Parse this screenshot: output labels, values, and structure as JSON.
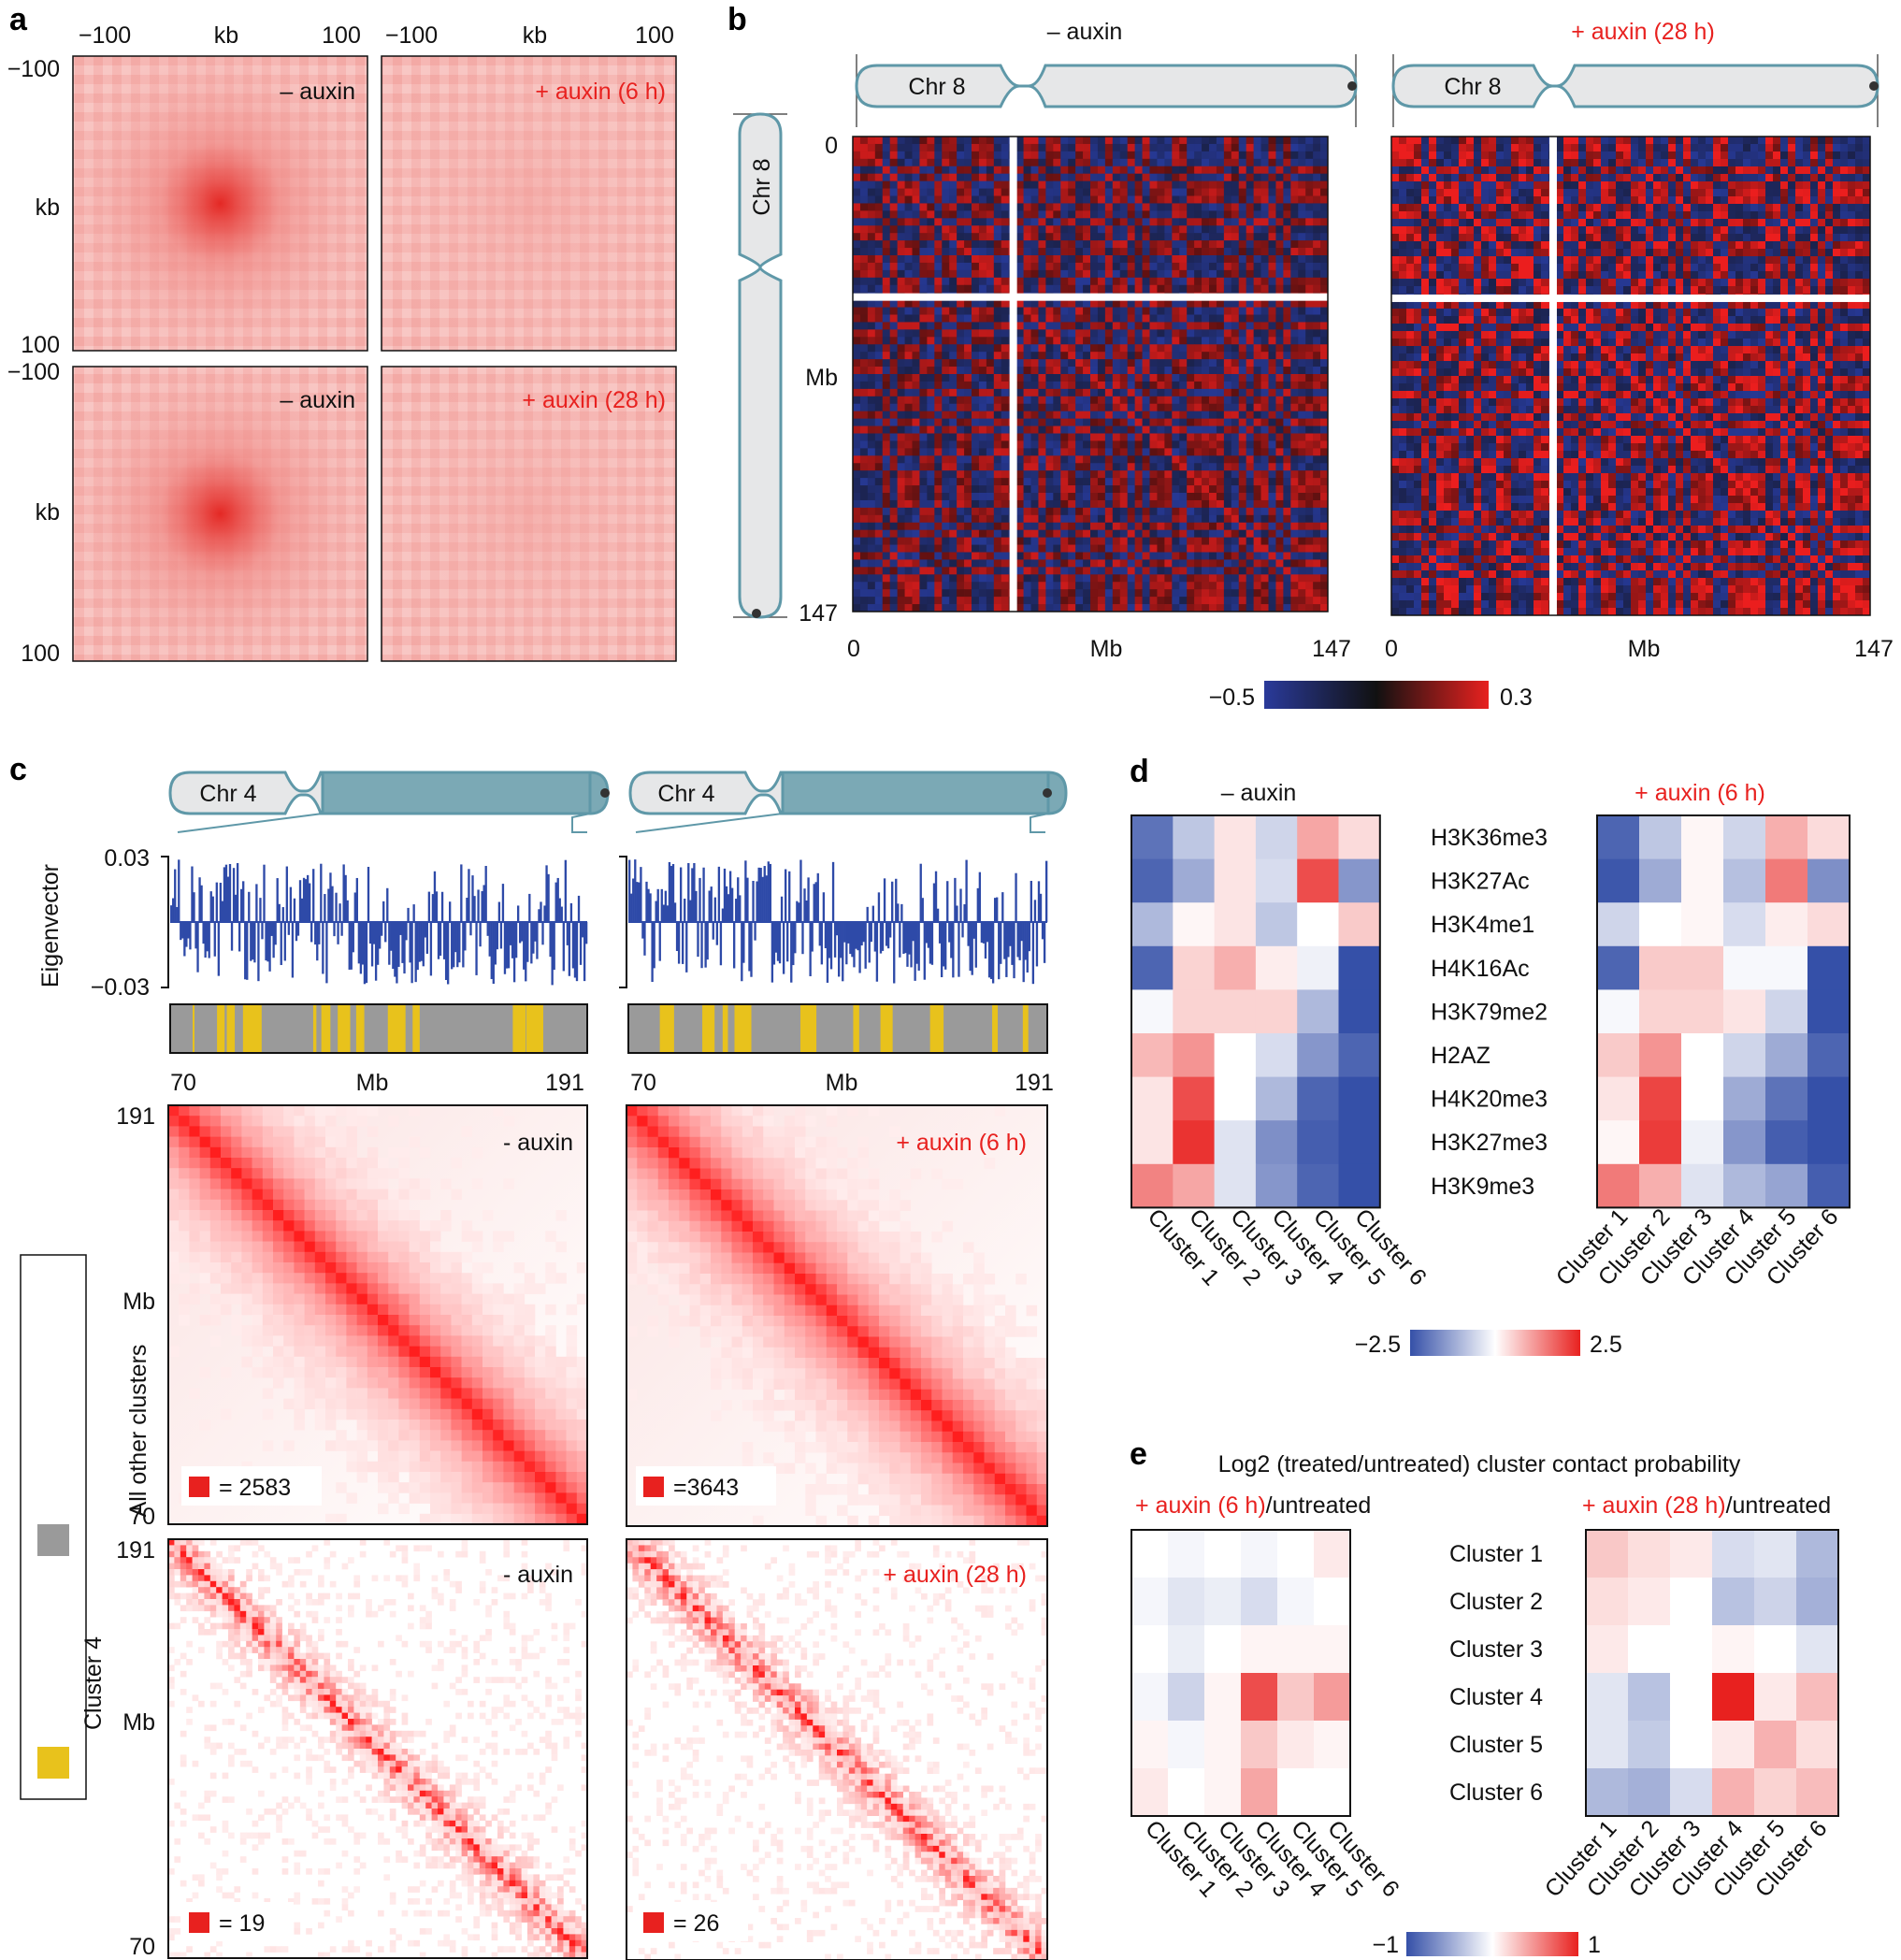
{
  "panels": {
    "a": {
      "label": "a",
      "x_ticks": [
        "−100",
        "kb",
        "100"
      ],
      "y_ticks_top": [
        "−100",
        "kb",
        "100"
      ],
      "y_ticks_bottom": [
        "−100",
        "kb",
        "100"
      ],
      "conditions": [
        "– auxin",
        "+ auxin (6 h)",
        "– auxin",
        "+ auxin (28 h)"
      ]
    },
    "b": {
      "label": "b",
      "titles": [
        "– auxin",
        "+ auxin (28 h)"
      ],
      "chromosome": "Chr 8",
      "y_ticks": [
        "0",
        "Mb",
        "147"
      ],
      "x_ticks": [
        "0",
        "Mb",
        "147"
      ],
      "colorbar": {
        "min": "−0.5",
        "max": "0.3",
        "colors": [
          "#2a3a9a",
          "#111111",
          "#e8211f"
        ]
      }
    },
    "c": {
      "label": "c",
      "chromosome": "Chr 4",
      "eigen_ylabel": "Eigenvector",
      "eigen_ticks": [
        "0.03",
        "−0.03"
      ],
      "x_ticks": [
        "70",
        "Mb",
        "191"
      ],
      "y_ticks": [
        "191",
        "Mb",
        "70"
      ],
      "maps": [
        {
          "condition": "- auxin",
          "scale": "= 2583"
        },
        {
          "condition": "+ auxin (6 h)",
          "scale": "=3643"
        },
        {
          "condition": "- auxin",
          "scale": "= 19"
        },
        {
          "condition": "+ auxin (28 h)",
          "scale": "= 26"
        }
      ],
      "legend": {
        "gray": "All other clusters",
        "yellow": "Cluster 4",
        "gray_color": "#9a9a9a",
        "yellow_color": "#e8c21c"
      }
    },
    "d": {
      "label": "d",
      "titles": [
        "– auxin",
        "+ auxin (6 h)"
      ],
      "rows": [
        "H3K36me3",
        "H3K27Ac",
        "H3K4me1",
        "H4K16Ac",
        "H3K79me2",
        "H2AZ",
        "H4K20me3",
        "H3K27me3",
        "H3K9me3"
      ],
      "clusters": [
        "Cluster 1",
        "Cluster 2",
        "Cluster 3",
        "Cluster 4",
        "Cluster 5",
        "Cluster 6"
      ],
      "colorbar": {
        "min": "−2.5",
        "max": "2.5"
      },
      "values_untreated": [
        [
          -2.0,
          -0.8,
          0.3,
          -0.6,
          1.0,
          0.4
        ],
        [
          -2.2,
          -1.2,
          0.3,
          -0.5,
          2.0,
          -1.5
        ],
        [
          -1.0,
          0.1,
          0.3,
          -0.8,
          0.0,
          0.6
        ],
        [
          -2.2,
          0.5,
          0.9,
          0.2,
          -0.2,
          -2.5
        ],
        [
          -0.1,
          0.5,
          0.5,
          0.5,
          -1.0,
          -2.5
        ],
        [
          0.8,
          1.2,
          0.0,
          -0.5,
          -1.5,
          -2.2
        ],
        [
          0.3,
          2.0,
          0.0,
          -1.0,
          -2.2,
          -2.5
        ],
        [
          0.3,
          2.3,
          -0.4,
          -1.6,
          -2.3,
          -2.5
        ],
        [
          1.4,
          1.0,
          -0.4,
          -1.5,
          -2.2,
          -2.5
        ]
      ],
      "values_treated": [
        [
          -2.2,
          -0.8,
          0.1,
          -0.6,
          0.9,
          0.4
        ],
        [
          -2.4,
          -1.2,
          0.1,
          -0.9,
          1.5,
          -1.6
        ],
        [
          -0.6,
          0.0,
          0.1,
          -0.5,
          0.2,
          0.4
        ],
        [
          -2.2,
          0.6,
          0.6,
          -0.1,
          -0.1,
          -2.5
        ],
        [
          -0.1,
          0.5,
          0.5,
          0.3,
          -0.6,
          -2.5
        ],
        [
          0.6,
          1.2,
          0.0,
          -0.6,
          -1.2,
          -2.2
        ],
        [
          0.3,
          2.1,
          0.0,
          -1.2,
          -2.0,
          -2.5
        ],
        [
          0.1,
          2.2,
          -0.2,
          -1.5,
          -2.3,
          -2.5
        ],
        [
          1.5,
          0.9,
          -0.4,
          -1.0,
          -1.3,
          -2.3
        ]
      ]
    },
    "e": {
      "label": "e",
      "title": "Log2 (treated/untreated) cluster contact probability",
      "subtitles": [
        {
          "red": "+ auxin (6 h)",
          "rest": "/untreated"
        },
        {
          "red": "+ auxin (28 h)",
          "rest": "/untreated"
        }
      ],
      "clusters": [
        "Cluster 1",
        "Cluster 2",
        "Cluster 3",
        "Cluster 4",
        "Cluster 5",
        "Cluster 6"
      ],
      "colorbar": {
        "min": "−1",
        "max": "1"
      },
      "values_6h": [
        [
          0.0,
          -0.05,
          0.0,
          -0.05,
          0.0,
          0.1
        ],
        [
          -0.05,
          -0.15,
          -0.1,
          -0.2,
          -0.05,
          0.0
        ],
        [
          0.0,
          -0.1,
          0.0,
          0.05,
          0.05,
          0.05
        ],
        [
          -0.05,
          -0.25,
          0.05,
          0.8,
          0.25,
          0.45
        ],
        [
          0.05,
          -0.05,
          0.05,
          0.25,
          0.1,
          0.05
        ],
        [
          0.1,
          0.0,
          0.05,
          0.4,
          0.0,
          0.0
        ]
      ],
      "values_28h": [
        [
          0.25,
          0.15,
          0.1,
          -0.2,
          -0.15,
          -0.4
        ],
        [
          0.15,
          0.1,
          0.0,
          -0.35,
          -0.25,
          -0.45
        ],
        [
          0.1,
          0.0,
          0.0,
          0.05,
          0.0,
          -0.15
        ],
        [
          -0.15,
          -0.35,
          0.0,
          1.0,
          0.1,
          0.3
        ],
        [
          -0.15,
          -0.3,
          0.0,
          0.1,
          0.35,
          0.15
        ],
        [
          -0.4,
          -0.45,
          -0.2,
          0.35,
          0.2,
          0.3
        ]
      ]
    }
  }
}
